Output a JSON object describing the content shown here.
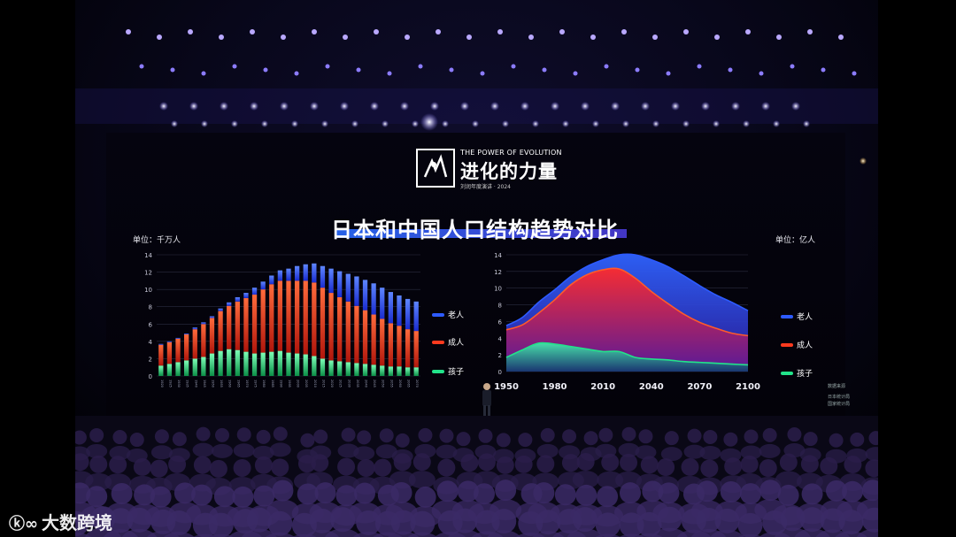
{
  "logo": {
    "en_text": "THE POWER OF EVOLUTION",
    "cn_text": "进化的力量",
    "sub_text": "刘润年度演讲 · 2024"
  },
  "slide": {
    "title": "日本和中国人口结构趋势对比",
    "left_unit": "单位：千万人",
    "right_unit": "单位：亿人"
  },
  "legend": [
    {
      "label": "老人",
      "color": "#2d5bff"
    },
    {
      "label": "成人",
      "color": "#ff3a1e"
    },
    {
      "label": "孩子",
      "color": "#22e38a"
    }
  ],
  "source": {
    "heading": "数据来源",
    "items": [
      "日本统计局",
      "国家统计局"
    ]
  },
  "watermark": "大数跨境",
  "chart_data": [
    {
      "type": "bar",
      "stacked": true,
      "y_ticks": [
        0,
        2,
        4,
        6,
        8,
        10,
        12,
        14
      ],
      "ylim": [
        0,
        14
      ],
      "categories": [
        "1920",
        "1925",
        "1930",
        "1935",
        "1940",
        "1945",
        "1950",
        "1955",
        "1960",
        "1965",
        "1970",
        "1975",
        "1980",
        "1985",
        "1990",
        "1995",
        "2000",
        "2005",
        "2010",
        "2015",
        "2020",
        "2025",
        "2030",
        "2035",
        "2040",
        "2045",
        "2050",
        "2055",
        "2060",
        "2065",
        "2070"
      ],
      "series": [
        {
          "name": "孩子",
          "values": [
            1.2,
            1.4,
            1.6,
            1.8,
            2.0,
            2.2,
            2.6,
            2.9,
            3.1,
            3.0,
            2.8,
            2.6,
            2.7,
            2.8,
            2.9,
            2.7,
            2.6,
            2.5,
            2.3,
            2.0,
            1.8,
            1.7,
            1.6,
            1.5,
            1.4,
            1.3,
            1.2,
            1.1,
            1.1,
            1.0,
            1.0
          ]
        },
        {
          "name": "成人",
          "values": [
            2.4,
            2.5,
            2.7,
            3.0,
            3.4,
            3.8,
            4.1,
            4.6,
            5.0,
            5.6,
            6.2,
            6.8,
            7.3,
            7.8,
            8.1,
            8.3,
            8.4,
            8.5,
            8.5,
            8.2,
            7.8,
            7.4,
            7.0,
            6.6,
            6.2,
            5.8,
            5.4,
            5.0,
            4.7,
            4.4,
            4.2
          ]
        },
        {
          "name": "老人",
          "values": [
            0.1,
            0.1,
            0.1,
            0.1,
            0.2,
            0.2,
            0.2,
            0.3,
            0.4,
            0.5,
            0.6,
            0.8,
            0.9,
            1.0,
            1.2,
            1.4,
            1.7,
            1.9,
            2.2,
            2.5,
            2.8,
            3.0,
            3.2,
            3.4,
            3.5,
            3.6,
            3.6,
            3.6,
            3.5,
            3.5,
            3.4
          ]
        }
      ]
    },
    {
      "type": "area",
      "x": [
        1950,
        1960,
        1970,
        1980,
        1990,
        2000,
        2010,
        2020,
        2030,
        2040,
        2050,
        2060,
        2070,
        2080,
        2090,
        2100
      ],
      "x_ticks": [
        1950,
        1980,
        2010,
        2040,
        2070,
        2100
      ],
      "y_ticks": [
        0,
        2,
        4,
        6,
        8,
        10,
        12,
        14
      ],
      "ylim": [
        0,
        14
      ],
      "series": [
        {
          "name": "老人",
          "values": [
            5.5,
            6.5,
            8.3,
            9.8,
            11.4,
            12.6,
            13.4,
            14.0,
            14.0,
            13.4,
            12.6,
            11.5,
            10.3,
            9.2,
            8.3,
            7.3
          ]
        },
        {
          "name": "成人",
          "values": [
            5.0,
            5.6,
            7.0,
            8.6,
            10.4,
            11.6,
            12.2,
            12.3,
            11.2,
            9.6,
            8.2,
            6.9,
            5.9,
            5.2,
            4.6,
            4.3
          ]
        },
        {
          "name": "孩子",
          "values": [
            1.7,
            2.6,
            3.4,
            3.3,
            3.0,
            2.7,
            2.4,
            2.4,
            1.7,
            1.5,
            1.4,
            1.2,
            1.1,
            1.0,
            0.9,
            0.8
          ]
        }
      ]
    }
  ]
}
